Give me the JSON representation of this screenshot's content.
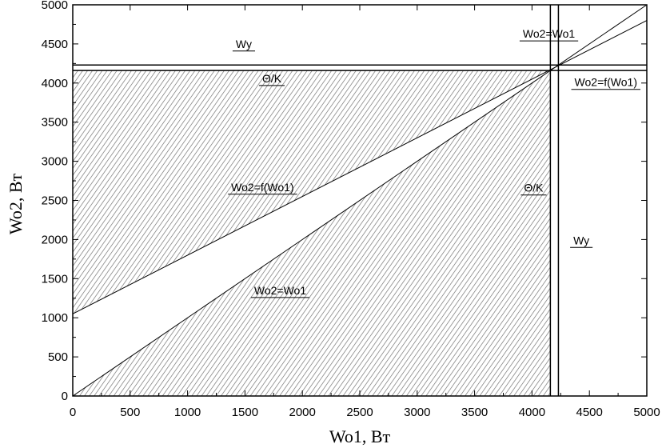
{
  "chart_data": {
    "type": "line",
    "title": "",
    "xlabel": "Wo1, Вт",
    "ylabel": "Wo2, Вт",
    "xlim": [
      0,
      5000
    ],
    "ylim": [
      0,
      5000
    ],
    "xticks": [
      "0",
      "500",
      "1000",
      "1500",
      "2000",
      "2500",
      "3000",
      "3500",
      "4000",
      "4500",
      "5000"
    ],
    "yticks": [
      "0",
      "500",
      "1000",
      "1500",
      "2000",
      "2500",
      "3000",
      "3500",
      "4000",
      "4500",
      "5000"
    ],
    "grid": false,
    "legend": "none",
    "lines": [
      {
        "name": "Wo2=f(Wo1)",
        "kind": "line",
        "x": [
          0,
          5000
        ],
        "y": [
          1050,
          4800
        ]
      },
      {
        "name": "Wo2=Wo1",
        "kind": "line",
        "x": [
          0,
          5000
        ],
        "y": [
          0,
          5000
        ]
      },
      {
        "name": "Wy",
        "kind": "hline",
        "value": 4230
      },
      {
        "name": "Θ/K",
        "kind": "hline",
        "value": 4160
      },
      {
        "name": "Wy",
        "kind": "vline",
        "value": 4230
      },
      {
        "name": "Θ/K",
        "kind": "vline",
        "value": 4160
      }
    ],
    "shaded_regions": [
      {
        "bounds": "x 0–4160, y from Wo2=f(Wo1) up to Θ/K"
      },
      {
        "bounds": "x 0–4160, y from 0 up to Wo2=Wo1"
      }
    ],
    "annotations": [
      {
        "text": "Wy",
        "at": [
          1420,
          4450
        ]
      },
      {
        "text": "Θ/K",
        "at": [
          1650,
          4010
        ]
      },
      {
        "text": "Wo2=Wo1",
        "at": [
          3920,
          4580
        ]
      },
      {
        "text": "Wo2=f(Wo1)",
        "at": [
          4370,
          3960
        ]
      },
      {
        "text": "Wo2=f(Wo1)",
        "at": [
          1380,
          2620
        ]
      },
      {
        "text": "Θ/K",
        "at": [
          3930,
          2610
        ]
      },
      {
        "text": "Wy",
        "at": [
          4360,
          1940
        ]
      },
      {
        "text": "Wo2=Wo1",
        "at": [
          1580,
          1300
        ]
      }
    ]
  }
}
